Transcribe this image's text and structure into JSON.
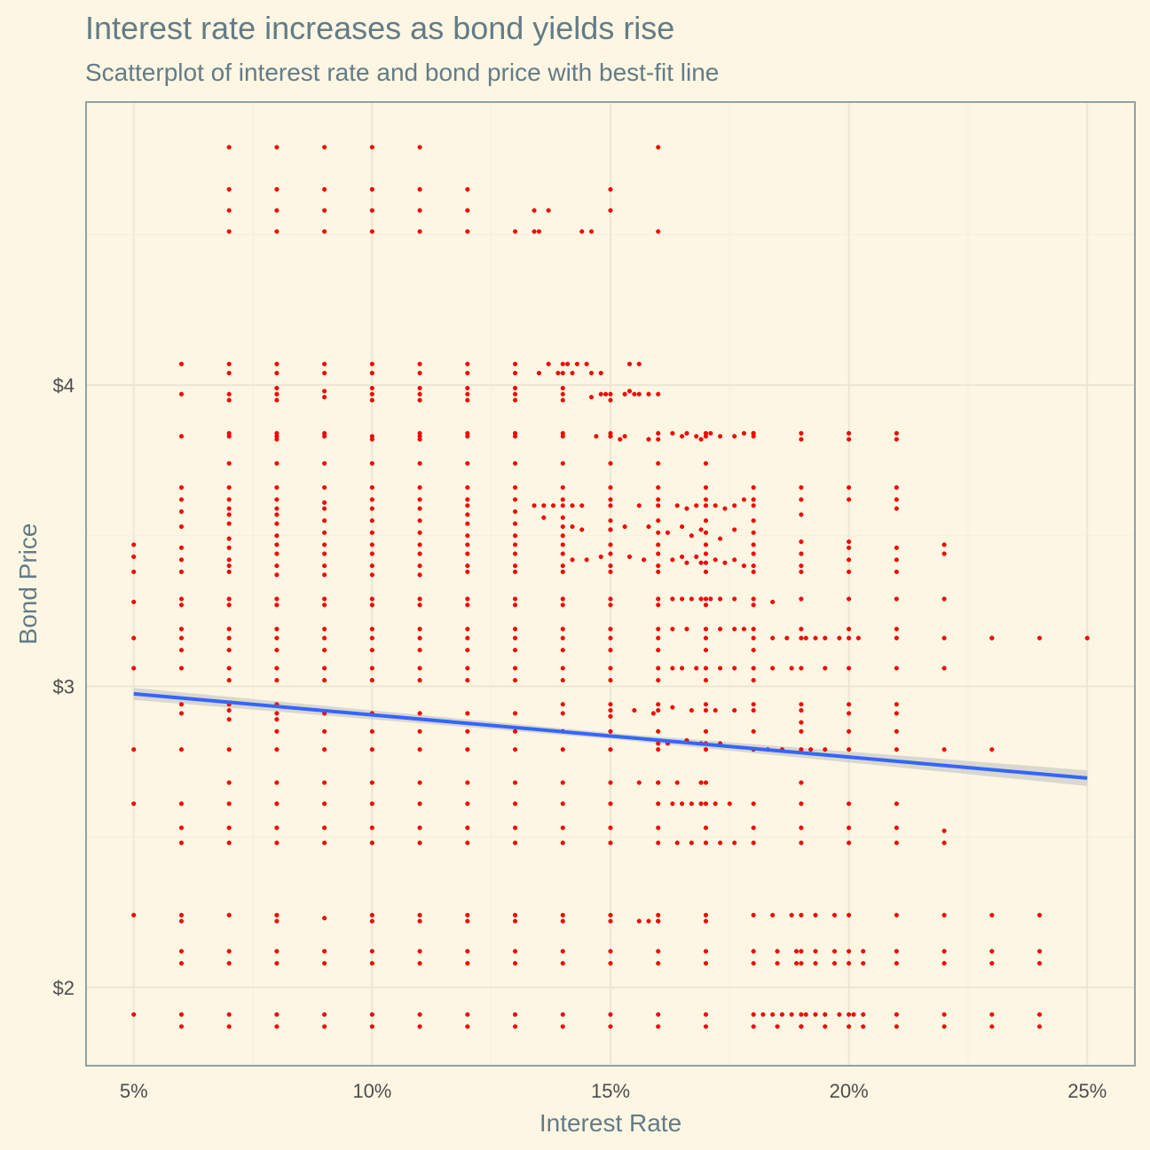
{
  "chart_data": {
    "type": "scatter",
    "title": "Interest rate increases as bond yields rise",
    "subtitle": "Scatterplot of interest rate and bond price with best-fit line",
    "xlabel": "Interest Rate",
    "ylabel": "Bond Price",
    "xlim": [
      4.0,
      26.0
    ],
    "ylim": [
      1.74,
      4.94
    ],
    "x_ticks": [
      5,
      10,
      15,
      20,
      25
    ],
    "x_tick_labels": [
      "5%",
      "10%",
      "15%",
      "20%",
      "25%"
    ],
    "y_ticks": [
      2,
      3,
      4
    ],
    "y_tick_labels": [
      "$2",
      "$3",
      "$4"
    ],
    "grid": true,
    "colors": {
      "background": "#fdf6e3",
      "points": "#ff0000",
      "fit_line": "#3366ff",
      "confidence_band": "#bdbdbd",
      "text": "#637c86"
    },
    "fit_line": {
      "type": "linear",
      "x": [
        5,
        25
      ],
      "y": [
        2.975,
        2.695
      ],
      "band_halfwidth_at_x": [
        [
          5,
          0.02
        ],
        [
          15,
          0.01
        ],
        [
          25,
          0.026
        ]
      ]
    },
    "point_columns": [
      {
        "x": 5,
        "y": [
          3.47,
          3.43,
          3.38,
          3.28,
          3.16,
          3.06,
          2.79,
          2.61,
          2.24,
          1.91
        ]
      },
      {
        "x": 6,
        "y": [
          4.07,
          3.97,
          3.83,
          3.66,
          3.62,
          3.58,
          3.53,
          3.46,
          3.42,
          3.38,
          3.29,
          3.27,
          3.19,
          3.16,
          3.12,
          3.06,
          2.94,
          2.91,
          2.79,
          2.61,
          2.53,
          2.48,
          2.24,
          2.22,
          2.12,
          2.08,
          1.91,
          1.87
        ]
      },
      {
        "x": 7,
        "y": [
          4.79,
          4.65,
          4.58,
          4.51,
          4.07,
          4.04,
          3.97,
          3.95,
          3.84,
          3.83,
          3.74,
          3.66,
          3.62,
          3.59,
          3.57,
          3.54,
          3.49,
          3.46,
          3.42,
          3.4,
          3.38,
          3.29,
          3.27,
          3.19,
          3.16,
          3.12,
          3.06,
          3.02,
          2.94,
          2.92,
          2.89,
          2.79,
          2.68,
          2.61,
          2.53,
          2.48,
          2.24,
          2.12,
          2.08,
          1.91,
          1.87
        ]
      },
      {
        "x": 8,
        "y": [
          4.79,
          4.65,
          4.58,
          4.51,
          4.07,
          4.04,
          3.99,
          3.97,
          3.95,
          3.84,
          3.83,
          3.82,
          3.74,
          3.66,
          3.62,
          3.59,
          3.57,
          3.54,
          3.5,
          3.47,
          3.44,
          3.4,
          3.37,
          3.29,
          3.27,
          3.19,
          3.16,
          3.12,
          3.06,
          3.02,
          2.94,
          2.91,
          2.89,
          2.85,
          2.79,
          2.68,
          2.61,
          2.53,
          2.48,
          2.24,
          2.22,
          2.12,
          2.08,
          1.91,
          1.87
        ]
      },
      {
        "x": 9,
        "y": [
          4.79,
          4.65,
          4.58,
          4.51,
          4.07,
          4.04,
          3.98,
          3.96,
          3.84,
          3.83,
          3.74,
          3.66,
          3.61,
          3.59,
          3.55,
          3.51,
          3.47,
          3.44,
          3.4,
          3.37,
          3.29,
          3.27,
          3.19,
          3.16,
          3.12,
          3.06,
          3.02,
          2.91,
          2.85,
          2.79,
          2.68,
          2.61,
          2.53,
          2.48,
          2.23,
          2.12,
          2.08,
          1.91,
          1.87
        ]
      },
      {
        "x": 10,
        "y": [
          4.79,
          4.65,
          4.58,
          4.51,
          4.07,
          4.04,
          3.99,
          3.97,
          3.95,
          3.83,
          3.82,
          3.74,
          3.66,
          3.62,
          3.59,
          3.55,
          3.51,
          3.47,
          3.44,
          3.4,
          3.37,
          3.29,
          3.27,
          3.19,
          3.16,
          3.12,
          3.06,
          3.02,
          2.91,
          2.85,
          2.79,
          2.68,
          2.61,
          2.53,
          2.48,
          2.24,
          2.22,
          2.12,
          2.08,
          1.91,
          1.87
        ]
      },
      {
        "x": 11,
        "y": [
          4.79,
          4.65,
          4.58,
          4.51,
          4.07,
          4.04,
          3.99,
          3.97,
          3.95,
          3.84,
          3.83,
          3.82,
          3.74,
          3.66,
          3.62,
          3.59,
          3.55,
          3.51,
          3.47,
          3.44,
          3.4,
          3.37,
          3.29,
          3.27,
          3.19,
          3.16,
          3.12,
          3.06,
          3.02,
          2.91,
          2.85,
          2.79,
          2.68,
          2.61,
          2.53,
          2.48,
          2.24,
          2.22,
          2.12,
          2.08,
          1.91,
          1.87
        ]
      },
      {
        "x": 12,
        "y": [
          4.65,
          4.58,
          4.51,
          4.07,
          4.04,
          3.99,
          3.97,
          3.95,
          3.84,
          3.83,
          3.74,
          3.66,
          3.62,
          3.6,
          3.57,
          3.54,
          3.5,
          3.47,
          3.44,
          3.4,
          3.38,
          3.29,
          3.27,
          3.19,
          3.16,
          3.12,
          3.06,
          3.02,
          2.91,
          2.85,
          2.79,
          2.68,
          2.61,
          2.53,
          2.48,
          2.24,
          2.22,
          2.12,
          2.08,
          1.91,
          1.87
        ]
      },
      {
        "x": 13,
        "y": [
          4.51,
          4.07,
          4.04,
          3.99,
          3.97,
          3.95,
          3.84,
          3.83,
          3.74,
          3.66,
          3.62,
          3.58,
          3.54,
          3.5,
          3.47,
          3.44,
          3.4,
          3.38,
          3.29,
          3.27,
          3.19,
          3.16,
          3.12,
          3.06,
          3.02,
          2.91,
          2.85,
          2.79,
          2.68,
          2.61,
          2.53,
          2.48,
          2.24,
          2.22,
          2.12,
          2.08,
          1.91,
          1.87
        ]
      },
      {
        "x": 14,
        "y": [
          4.07,
          4.04,
          3.99,
          3.97,
          3.95,
          3.84,
          3.83,
          3.74,
          3.66,
          3.62,
          3.6,
          3.56,
          3.53,
          3.5,
          3.47,
          3.44,
          3.4,
          3.38,
          3.29,
          3.27,
          3.19,
          3.16,
          3.12,
          3.06,
          3.02,
          2.94,
          2.91,
          2.85,
          2.79,
          2.68,
          2.61,
          2.53,
          2.48,
          2.24,
          2.22,
          2.12,
          2.08,
          1.91,
          1.87
        ]
      },
      {
        "x": 15,
        "y": [
          4.65,
          4.58,
          3.97,
          3.95,
          3.84,
          3.83,
          3.74,
          3.66,
          3.62,
          3.6,
          3.55,
          3.52,
          3.47,
          3.44,
          3.4,
          3.38,
          3.29,
          3.27,
          3.19,
          3.16,
          3.12,
          3.06,
          3.02,
          2.94,
          2.92,
          2.9,
          2.85,
          2.79,
          2.68,
          2.61,
          2.53,
          2.48,
          2.24,
          2.22,
          2.12,
          2.08,
          1.91,
          1.87
        ]
      },
      {
        "x": 16,
        "y": [
          4.79,
          4.51,
          3.84,
          3.82,
          3.74,
          3.66,
          3.62,
          3.6,
          3.55,
          3.51,
          3.47,
          3.44,
          3.4,
          3.38,
          3.29,
          3.27,
          3.19,
          3.16,
          3.12,
          3.06,
          3.02,
          2.94,
          2.92,
          2.85,
          2.81,
          2.79,
          2.68,
          2.61,
          2.53,
          2.48,
          2.24,
          2.22,
          2.12,
          2.08,
          1.91,
          1.87
        ]
      },
      {
        "x": 17,
        "y": [
          3.84,
          3.83,
          3.74,
          3.66,
          3.62,
          3.6,
          3.55,
          3.51,
          3.47,
          3.44,
          3.41,
          3.38,
          3.29,
          3.27,
          3.19,
          3.16,
          3.12,
          3.06,
          3.02,
          2.94,
          2.92,
          2.85,
          2.81,
          2.79,
          2.68,
          2.61,
          2.53,
          2.48,
          2.24,
          2.22,
          2.12,
          2.08,
          1.91,
          1.87
        ]
      },
      {
        "x": 18,
        "y": [
          3.84,
          3.83,
          3.66,
          3.62,
          3.6,
          3.55,
          3.51,
          3.47,
          3.44,
          3.4,
          3.38,
          3.29,
          3.27,
          3.19,
          3.16,
          3.12,
          3.06,
          3.02,
          2.94,
          2.92,
          2.85,
          2.79,
          2.61,
          2.53,
          2.48,
          2.24,
          2.12,
          2.08,
          1.91,
          1.87
        ]
      },
      {
        "x": 19,
        "y": [
          3.84,
          3.82,
          3.66,
          3.62,
          3.57,
          3.48,
          3.44,
          3.4,
          3.38,
          3.29,
          3.19,
          3.16,
          3.06,
          2.94,
          2.92,
          2.88,
          2.85,
          2.79,
          2.68,
          2.61,
          2.53,
          2.48,
          2.24,
          2.12,
          2.08,
          1.91,
          1.87
        ]
      },
      {
        "x": 20,
        "y": [
          3.84,
          3.82,
          3.66,
          3.62,
          3.48,
          3.46,
          3.42,
          3.38,
          3.29,
          3.19,
          3.16,
          3.06,
          2.94,
          2.91,
          2.85,
          2.79,
          2.61,
          2.53,
          2.48,
          2.24,
          2.12,
          2.08,
          1.91,
          1.87
        ]
      },
      {
        "x": 21,
        "y": [
          3.84,
          3.82,
          3.66,
          3.62,
          3.59,
          3.46,
          3.42,
          3.38,
          3.29,
          3.19,
          3.16,
          3.06,
          2.94,
          2.91,
          2.85,
          2.79,
          2.61,
          2.53,
          2.48,
          2.24,
          2.12,
          2.08,
          1.91,
          1.87
        ]
      },
      {
        "x": 22,
        "y": [
          3.47,
          3.44,
          3.29,
          3.16,
          3.06,
          2.79,
          2.52,
          2.48,
          2.24,
          2.12,
          2.08,
          1.91,
          1.87
        ]
      },
      {
        "x": 23,
        "y": [
          3.16,
          2.79,
          2.24,
          2.12,
          2.08,
          1.91,
          1.87
        ]
      },
      {
        "x": 24,
        "y": [
          3.16,
          2.24,
          2.12,
          2.08,
          1.91,
          1.87
        ]
      },
      {
        "x": 25,
        "y": [
          3.16
        ]
      }
    ],
    "points_extra": [
      [
        13.4,
        4.51
      ],
      [
        13.5,
        4.51
      ],
      [
        14.4,
        4.51
      ],
      [
        14.6,
        4.51
      ],
      [
        13.4,
        4.58
      ],
      [
        13.7,
        4.58
      ],
      [
        13.5,
        4.04
      ],
      [
        13.7,
        4.07
      ],
      [
        13.9,
        4.04
      ],
      [
        14.1,
        4.07
      ],
      [
        14.2,
        4.04
      ],
      [
        14.3,
        4.07
      ],
      [
        14.5,
        4.07
      ],
      [
        14.6,
        4.04
      ],
      [
        14.8,
        4.04
      ],
      [
        15.4,
        4.07
      ],
      [
        15.6,
        4.07
      ],
      [
        14.6,
        3.96
      ],
      [
        14.8,
        3.97
      ],
      [
        14.9,
        3.97
      ],
      [
        15.3,
        3.97
      ],
      [
        15.4,
        3.98
      ],
      [
        15.5,
        3.97
      ],
      [
        15.6,
        3.97
      ],
      [
        15.8,
        3.97
      ],
      [
        16.0,
        3.97
      ],
      [
        14.7,
        3.83
      ],
      [
        15.0,
        3.83
      ],
      [
        15.2,
        3.82
      ],
      [
        15.3,
        3.83
      ],
      [
        15.8,
        3.82
      ],
      [
        16.3,
        3.84
      ],
      [
        16.5,
        3.83
      ],
      [
        16.6,
        3.84
      ],
      [
        16.8,
        3.83
      ],
      [
        16.9,
        3.82
      ],
      [
        17.1,
        3.84
      ],
      [
        17.3,
        3.83
      ],
      [
        17.6,
        3.83
      ],
      [
        17.8,
        3.84
      ],
      [
        18.0,
        3.84
      ],
      [
        13.4,
        3.6
      ],
      [
        13.6,
        3.6
      ],
      [
        13.8,
        3.6
      ],
      [
        14.2,
        3.6
      ],
      [
        14.4,
        3.6
      ],
      [
        15.6,
        3.6
      ],
      [
        16.4,
        3.6
      ],
      [
        16.6,
        3.59
      ],
      [
        16.8,
        3.6
      ],
      [
        17.2,
        3.6
      ],
      [
        17.4,
        3.59
      ],
      [
        17.6,
        3.6
      ],
      [
        17.8,
        3.62
      ],
      [
        13.6,
        3.56
      ],
      [
        14.2,
        3.53
      ],
      [
        14.4,
        3.52
      ],
      [
        15.0,
        3.52
      ],
      [
        15.3,
        3.53
      ],
      [
        15.8,
        3.53
      ],
      [
        16.2,
        3.51
      ],
      [
        16.5,
        3.53
      ],
      [
        16.7,
        3.5
      ],
      [
        16.9,
        3.52
      ],
      [
        17.3,
        3.49
      ],
      [
        17.6,
        3.52
      ],
      [
        14.2,
        3.42
      ],
      [
        14.5,
        3.42
      ],
      [
        14.8,
        3.43
      ],
      [
        15.4,
        3.43
      ],
      [
        15.7,
        3.42
      ],
      [
        16.3,
        3.42
      ],
      [
        16.5,
        3.43
      ],
      [
        16.6,
        3.41
      ],
      [
        16.8,
        3.43
      ],
      [
        16.9,
        3.41
      ],
      [
        17.2,
        3.42
      ],
      [
        17.4,
        3.41
      ],
      [
        17.6,
        3.42
      ],
      [
        17.8,
        3.4
      ],
      [
        16.3,
        3.29
      ],
      [
        16.5,
        3.29
      ],
      [
        16.7,
        3.29
      ],
      [
        16.9,
        3.29
      ],
      [
        17.1,
        3.29
      ],
      [
        17.3,
        3.29
      ],
      [
        17.6,
        3.29
      ],
      [
        18.4,
        3.28
      ],
      [
        16.3,
        3.19
      ],
      [
        16.6,
        3.19
      ],
      [
        17.3,
        3.19
      ],
      [
        17.6,
        3.19
      ],
      [
        17.8,
        3.19
      ],
      [
        18.4,
        3.16
      ],
      [
        18.7,
        3.16
      ],
      [
        19.1,
        3.16
      ],
      [
        19.3,
        3.16
      ],
      [
        19.5,
        3.16
      ],
      [
        19.8,
        3.16
      ],
      [
        20.2,
        3.16
      ],
      [
        23.0,
        3.16
      ],
      [
        16.3,
        3.06
      ],
      [
        16.5,
        3.06
      ],
      [
        16.8,
        3.06
      ],
      [
        17.3,
        3.06
      ],
      [
        17.6,
        3.06
      ],
      [
        18.4,
        3.06
      ],
      [
        18.8,
        3.06
      ],
      [
        19.5,
        3.06
      ],
      [
        15.5,
        2.92
      ],
      [
        15.9,
        2.91
      ],
      [
        16.3,
        2.93
      ],
      [
        16.7,
        2.92
      ],
      [
        17.2,
        2.92
      ],
      [
        17.6,
        2.92
      ],
      [
        16.2,
        2.81
      ],
      [
        16.6,
        2.82
      ],
      [
        16.9,
        2.81
      ],
      [
        17.3,
        2.81
      ],
      [
        18.3,
        2.79
      ],
      [
        18.6,
        2.79
      ],
      [
        19.2,
        2.79
      ],
      [
        19.5,
        2.79
      ],
      [
        15.6,
        2.68
      ],
      [
        16.0,
        2.68
      ],
      [
        16.4,
        2.68
      ],
      [
        16.9,
        2.68
      ],
      [
        16.3,
        2.61
      ],
      [
        16.5,
        2.61
      ],
      [
        16.7,
        2.61
      ],
      [
        16.9,
        2.61
      ],
      [
        17.2,
        2.61
      ],
      [
        17.5,
        2.61
      ],
      [
        16.4,
        2.48
      ],
      [
        16.7,
        2.48
      ],
      [
        17.3,
        2.48
      ],
      [
        17.6,
        2.48
      ],
      [
        15.6,
        2.22
      ],
      [
        15.8,
        2.22
      ],
      [
        16.0,
        2.22
      ],
      [
        18.4,
        2.24
      ],
      [
        18.8,
        2.24
      ],
      [
        19.3,
        2.24
      ],
      [
        19.7,
        2.24
      ],
      [
        18.5,
        2.12
      ],
      [
        18.9,
        2.12
      ],
      [
        19.3,
        2.12
      ],
      [
        19.7,
        2.12
      ],
      [
        20.3,
        2.12
      ],
      [
        18.5,
        2.08
      ],
      [
        18.9,
        2.08
      ],
      [
        19.3,
        2.08
      ],
      [
        19.7,
        2.08
      ],
      [
        20.3,
        2.08
      ],
      [
        18.2,
        1.91
      ],
      [
        18.4,
        1.91
      ],
      [
        18.6,
        1.91
      ],
      [
        18.8,
        1.91
      ],
      [
        19.1,
        1.91
      ],
      [
        19.3,
        1.91
      ],
      [
        19.5,
        1.91
      ],
      [
        19.8,
        1.91
      ],
      [
        20.1,
        1.91
      ],
      [
        20.3,
        1.91
      ],
      [
        18.5,
        1.87
      ],
      [
        19.0,
        1.87
      ],
      [
        19.5,
        1.87
      ],
      [
        20.3,
        1.87
      ]
    ]
  }
}
